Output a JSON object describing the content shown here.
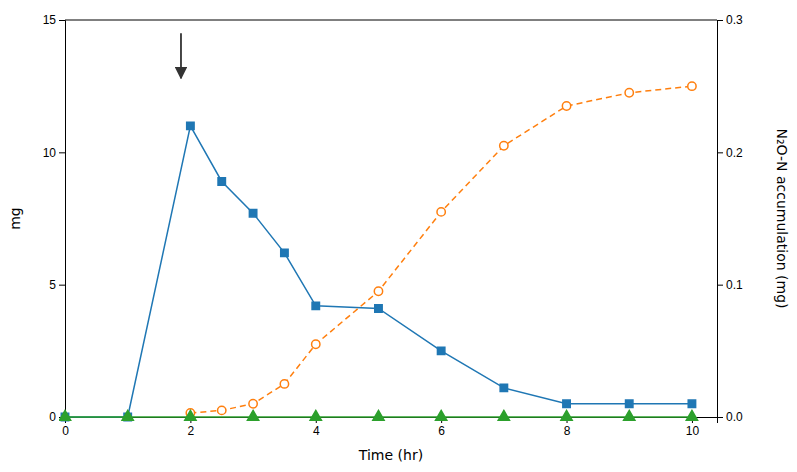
{
  "chart_data": {
    "type": "line",
    "xlabel": "Time (hr)",
    "ylabel": "mg",
    "y2label": "N₂O-N accumulation (mg)",
    "xlim": [
      0,
      10.4
    ],
    "xticks": [
      0,
      2,
      4,
      6,
      8,
      10
    ],
    "ylim": [
      0,
      15
    ],
    "yticks": [
      0,
      5,
      10,
      15
    ],
    "y2lim": [
      0,
      0.3
    ],
    "y2ticks": [
      {
        "value": 0.0,
        "label": "0.0"
      },
      0.1,
      0.2,
      0.3
    ],
    "grid": false,
    "series": [
      {
        "x": [
          0,
          1,
          2,
          2.5,
          3,
          3.5,
          4,
          5,
          6,
          7,
          8,
          9,
          10
        ],
        "values": [
          0.0,
          0.0,
          11.0,
          8.9,
          7.7,
          6.2,
          4.2,
          4.1,
          2.5,
          1.1,
          0.5,
          0.5,
          0.5
        ],
        "marker": "square",
        "line_style": "solid"
      },
      {
        "x": [
          2,
          2.5,
          3,
          3.5,
          4,
          5,
          6,
          7,
          8,
          9,
          10
        ],
        "values": [
          0.003,
          0.005,
          0.01,
          0.025,
          0.055,
          0.095,
          0.155,
          0.205,
          0.235,
          0.245,
          0.25
        ],
        "axis": "y2",
        "marker": "circle-open",
        "line_style": "dashed"
      },
      {
        "x": [
          0,
          1,
          2,
          3,
          4,
          5,
          6,
          7,
          8,
          9,
          10
        ],
        "values": [
          0.0,
          0.0,
          0.0,
          0.0,
          0.0,
          0.0,
          0.0,
          0.0,
          0.0,
          0.0,
          0.0
        ],
        "marker": "triangle",
        "line_style": "solid"
      }
    ],
    "annotations": [
      {
        "x": 1.85,
        "y_from": 14.5,
        "y_to": 12.8
      }
    ]
  }
}
